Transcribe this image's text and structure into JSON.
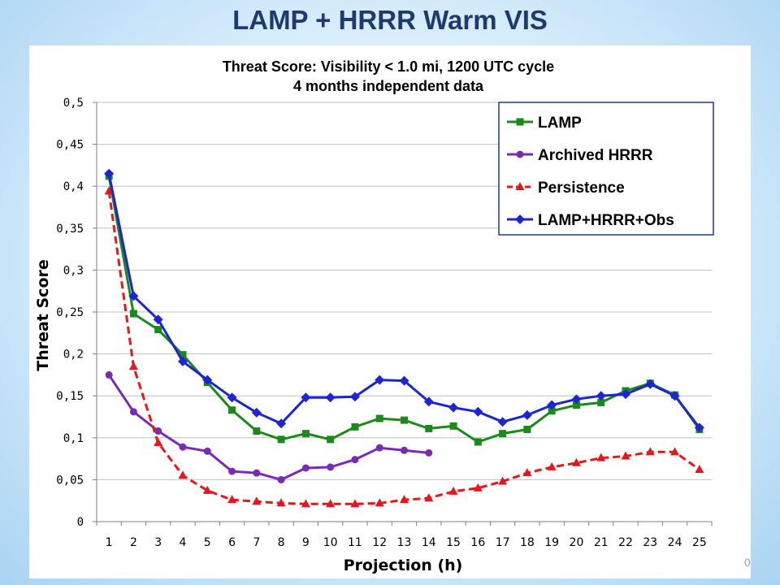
{
  "slide": {
    "title": "LAMP + HRRR Warm VIS",
    "number": "0"
  },
  "colors": {
    "title": "#1f3a6f",
    "grid": "#bfbfbf",
    "axis": "#7f7f7f",
    "legend_border": "#1f3a8a"
  },
  "chart_data": {
    "type": "line",
    "title": "Threat Score: Visibility < 1.0 mi, 1200 UTC cycle",
    "subtitle": "4 months independent data",
    "xlabel": "Projection (h)",
    "ylabel": "Threat Score",
    "ylim": [
      0,
      0.5
    ],
    "yticks": [
      "0",
      "0,05",
      "0,1",
      "0,15",
      "0,2",
      "0,25",
      "0,3",
      "0,35",
      "0,4",
      "0,45",
      "0,5"
    ],
    "categories": [
      "1",
      "2",
      "3",
      "4",
      "5",
      "6",
      "7",
      "8",
      "9",
      "10",
      "11",
      "12",
      "13",
      "14",
      "15",
      "16",
      "17",
      "18",
      "19",
      "20",
      "21",
      "22",
      "23",
      "24",
      "25"
    ],
    "grid": "horizontal",
    "legend_position": "top-right",
    "series": [
      {
        "name": "LAMP",
        "color": "#1a8a1a",
        "marker": "square",
        "dash": false,
        "values": [
          0.412,
          0.248,
          0.229,
          0.199,
          0.166,
          0.133,
          0.108,
          0.098,
          0.105,
          0.098,
          0.113,
          0.123,
          0.121,
          0.111,
          0.114,
          0.095,
          0.105,
          0.11,
          0.132,
          0.139,
          0.142,
          0.156,
          0.165,
          0.151,
          0.11
        ]
      },
      {
        "name": "Archived HRRR",
        "color": "#7b2ab5",
        "marker": "circle",
        "dash": false,
        "values": [
          0.175,
          0.131,
          0.108,
          0.089,
          0.084,
          0.06,
          0.058,
          0.05,
          0.064,
          0.065,
          0.074,
          0.088,
          0.085,
          0.082,
          null,
          null,
          null,
          null,
          null,
          null,
          null,
          null,
          null,
          null,
          null
        ]
      },
      {
        "name": "Persistence",
        "color": "#e8161b",
        "marker": "triangle",
        "dash": true,
        "values": [
          0.394,
          0.185,
          0.094,
          0.055,
          0.037,
          0.026,
          0.024,
          0.022,
          0.021,
          0.021,
          0.021,
          0.022,
          0.026,
          0.028,
          0.036,
          0.04,
          0.048,
          0.058,
          0.065,
          0.07,
          0.076,
          0.078,
          0.083,
          0.083,
          0.062
        ]
      },
      {
        "name": "LAMP+HRRR+Obs",
        "color": "#1c24d6",
        "marker": "diamond",
        "dash": false,
        "values": [
          0.415,
          0.269,
          0.241,
          0.191,
          0.169,
          0.148,
          0.13,
          0.117,
          0.148,
          0.148,
          0.149,
          0.169,
          0.168,
          0.143,
          0.136,
          0.131,
          0.119,
          0.127,
          0.139,
          0.146,
          0.15,
          0.152,
          0.164,
          0.15,
          0.112
        ]
      }
    ]
  }
}
